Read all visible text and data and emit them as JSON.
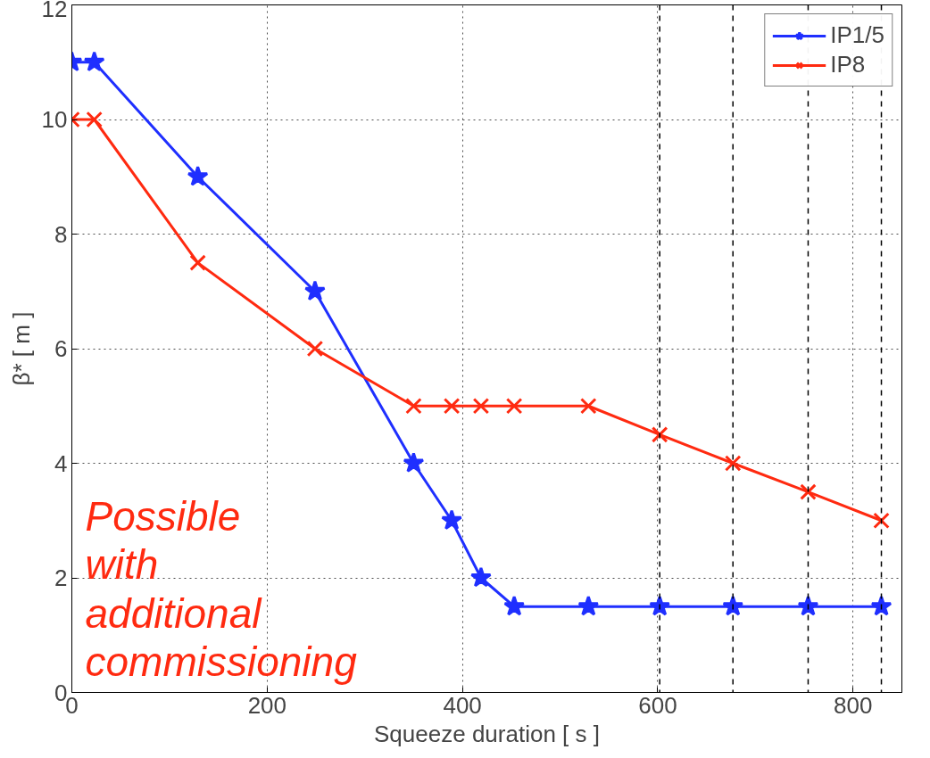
{
  "chart_data": {
    "type": "line",
    "xlabel": "Squeeze duration [ s ]",
    "ylabel": "β* [ m ]",
    "x": [
      0,
      23,
      129,
      249,
      350,
      389,
      419,
      453,
      529,
      602,
      677,
      754,
      829
    ],
    "series": [
      {
        "name": "IP1/5",
        "color": "#1f2fff",
        "marker": "star",
        "values": [
          11,
          11,
          9,
          7,
          4,
          3,
          2,
          1.5,
          1.5,
          1.5,
          1.5,
          1.5,
          1.5
        ]
      },
      {
        "name": "IP8",
        "color": "#ff2a10",
        "marker": "cross",
        "values": [
          10,
          10,
          7.5,
          6,
          5,
          5,
          5,
          5,
          5,
          4.5,
          4,
          3.5,
          3
        ]
      }
    ],
    "xlim": [
      0,
      850
    ],
    "ylim": [
      0,
      12
    ],
    "xticks": [
      0,
      200,
      400,
      600,
      800
    ],
    "yticks": [
      0,
      2,
      4,
      6,
      8,
      10,
      12
    ],
    "ref_lines": [
      {
        "axis": "x",
        "value": 602,
        "label": null,
        "color": "#000000",
        "line_style": "dashed"
      },
      {
        "axis": "x",
        "value": 677,
        "label": null,
        "color": "#000000",
        "line_style": "dashed"
      },
      {
        "axis": "x",
        "value": 754,
        "label": null,
        "color": "#000000",
        "line_style": "dashed"
      },
      {
        "axis": "x",
        "value": 829,
        "label": null,
        "color": "#000000",
        "line_style": "dashed"
      }
    ],
    "annotations": [
      "Possible\nwith\nadditional\ncommissioning"
    ],
    "grid": true,
    "legend": "top right",
    "line_style": "solid"
  }
}
